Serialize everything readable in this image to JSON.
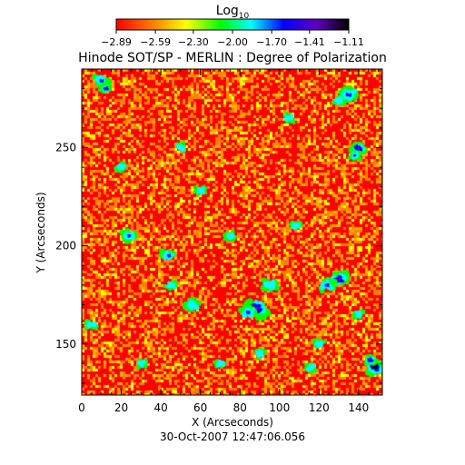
{
  "chart_data": {
    "type": "heatmap",
    "title": "Hinode SOT/SP - MERLIN : Degree of Polarization",
    "xlabel": "X (Arcseconds)",
    "ylabel": "Y (Arcseconds)",
    "footer": "30-Oct-2007 12:47:06.056",
    "xlim": [
      0,
      152
    ],
    "ylim": [
      124,
      290
    ],
    "x_ticks": [
      0,
      20,
      40,
      60,
      80,
      100,
      120,
      140
    ],
    "x_tick_labels": [
      "0",
      "20",
      "40",
      "60",
      "80",
      "100",
      "120",
      "140"
    ],
    "y_ticks": [
      150,
      200,
      250
    ],
    "y_tick_labels": [
      "150",
      "200",
      "250"
    ],
    "colorbar": {
      "title_base": "Log",
      "title_sub": "10",
      "range": [
        -2.89,
        -1.11
      ],
      "ticks": [
        -2.89,
        -2.59,
        -2.3,
        -2.0,
        -1.7,
        -1.41,
        -1.11
      ],
      "tick_labels": [
        "−2.89",
        "−2.59",
        "−2.30",
        "−2.00",
        "−1.70",
        "−1.41",
        "−1.11"
      ],
      "colormap": [
        "#ff0000",
        "#ff8000",
        "#ffff00",
        "#00ff00",
        "#00ffff",
        "#0000ff",
        "#6000c0",
        "#000000"
      ]
    },
    "patches": [
      {
        "x": 88,
        "y": 168,
        "size": 6,
        "value": -1.3
      },
      {
        "x": 84,
        "y": 166,
        "size": 4,
        "value": -1.6
      },
      {
        "x": 130,
        "y": 183,
        "size": 5,
        "value": -1.4
      },
      {
        "x": 124,
        "y": 180,
        "size": 4,
        "value": -1.6
      },
      {
        "x": 148,
        "y": 138,
        "size": 5,
        "value": -1.2
      },
      {
        "x": 146,
        "y": 142,
        "size": 3,
        "value": -1.5
      },
      {
        "x": 135,
        "y": 277,
        "size": 5,
        "value": -1.6
      },
      {
        "x": 130,
        "y": 274,
        "size": 3,
        "value": -1.8
      },
      {
        "x": 10,
        "y": 284,
        "size": 4,
        "value": -1.6
      },
      {
        "x": 12,
        "y": 280,
        "size": 3,
        "value": -1.5
      },
      {
        "x": 24,
        "y": 205,
        "size": 4,
        "value": -1.6
      },
      {
        "x": 44,
        "y": 195,
        "size": 4,
        "value": -1.6
      },
      {
        "x": 140,
        "y": 250,
        "size": 4,
        "value": -1.4
      },
      {
        "x": 138,
        "y": 246,
        "size": 3,
        "value": -1.7
      },
      {
        "x": 95,
        "y": 180,
        "size": 4,
        "value": -1.8
      },
      {
        "x": 56,
        "y": 170,
        "size": 4,
        "value": -1.8
      },
      {
        "x": 60,
        "y": 228,
        "size": 3,
        "value": -1.9
      },
      {
        "x": 50,
        "y": 250,
        "size": 3,
        "value": -1.9
      },
      {
        "x": 105,
        "y": 265,
        "size": 3,
        "value": -1.9
      },
      {
        "x": 30,
        "y": 140,
        "size": 3,
        "value": -1.8
      },
      {
        "x": 116,
        "y": 138,
        "size": 3,
        "value": -1.8
      },
      {
        "x": 70,
        "y": 140,
        "size": 3,
        "value": -1.9
      },
      {
        "x": 20,
        "y": 240,
        "size": 3,
        "value": -1.9
      },
      {
        "x": 108,
        "y": 210,
        "size": 3,
        "value": -1.9
      },
      {
        "x": 75,
        "y": 205,
        "size": 3,
        "value": -1.9
      },
      {
        "x": 140,
        "y": 165,
        "size": 3,
        "value": -1.8
      },
      {
        "x": 5,
        "y": 160,
        "size": 3,
        "value": -1.9
      },
      {
        "x": 120,
        "y": 150,
        "size": 3,
        "value": -1.9
      },
      {
        "x": 90,
        "y": 145,
        "size": 3,
        "value": -1.9
      },
      {
        "x": 45,
        "y": 180,
        "size": 3,
        "value": -1.9
      }
    ]
  }
}
